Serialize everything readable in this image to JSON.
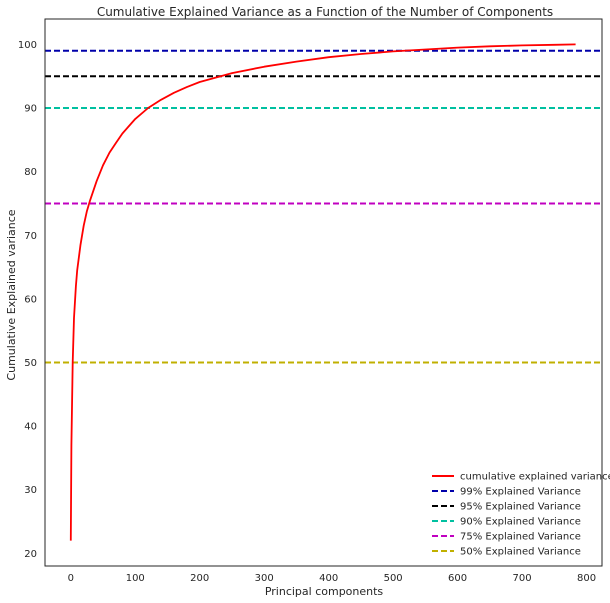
{
  "chart_data": {
    "type": "line",
    "title": "Cumulative Explained Variance as a Function of the Number of Components",
    "xlabel": "Principal components",
    "ylabel": "Cumulative Explained variance",
    "xlim": [
      -40,
      824
    ],
    "ylim": [
      18,
      104
    ],
    "xticks": [
      0,
      100,
      200,
      300,
      400,
      500,
      600,
      700,
      800
    ],
    "yticks": [
      20,
      30,
      40,
      50,
      60,
      70,
      80,
      90,
      100
    ],
    "grid": false,
    "legend_position": "lower right",
    "series": [
      {
        "name": "cumulative explained variance",
        "color": "#ff0000",
        "style": "solid",
        "x": [
          0,
          1,
          2,
          3,
          5,
          8,
          10,
          15,
          20,
          25,
          30,
          40,
          50,
          60,
          70,
          80,
          100,
          120,
          140,
          160,
          180,
          200,
          250,
          300,
          350,
          400,
          450,
          500,
          550,
          600,
          650,
          700,
          750,
          783
        ],
        "y": [
          22,
          37,
          44,
          50,
          57,
          62,
          64.5,
          68.5,
          71.5,
          73.8,
          75.5,
          78.5,
          81,
          83,
          84.5,
          86,
          88.3,
          90,
          91.3,
          92.4,
          93.3,
          94.1,
          95.5,
          96.5,
          97.3,
          98,
          98.5,
          98.9,
          99.2,
          99.5,
          99.7,
          99.85,
          99.95,
          100
        ]
      }
    ],
    "thresholds": [
      {
        "name": "99% Explained Variance",
        "y": 99,
        "color": "#0000aa",
        "style": "dashed"
      },
      {
        "name": "95% Explained Variance",
        "y": 95,
        "color": "#000000",
        "style": "dashed"
      },
      {
        "name": "90% Explained Variance",
        "y": 90,
        "color": "#00c0a0",
        "style": "dashed"
      },
      {
        "name": "75% Explained Variance",
        "y": 75,
        "color": "#c000c0",
        "style": "dashed"
      },
      {
        "name": "50% Explained Variance",
        "y": 50,
        "color": "#c0b000",
        "style": "dashed"
      }
    ]
  }
}
